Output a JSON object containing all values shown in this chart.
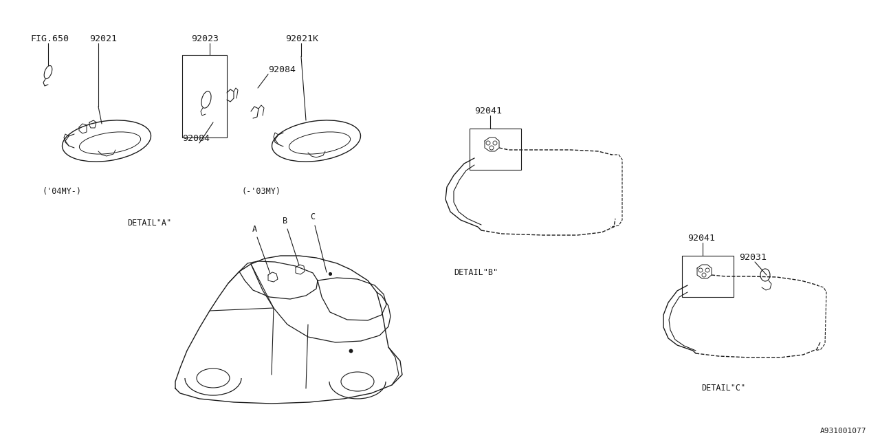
{
  "bg_color": "#ffffff",
  "line_color": "#1a1a1a",
  "fig_width": 12.8,
  "fig_height": 6.4,
  "dpi": 100,
  "part_numbers": {
    "fig650": "FIG.650",
    "p92021": "92021",
    "p92023": "92023",
    "p92021K": "92021K",
    "p92084_top": "92084",
    "p92084_bot": "92084",
    "p92041_b": "92041",
    "p92041_c": "92041",
    "p92031": "92031",
    "detail_a": "DETAIL\"A\"",
    "detail_b": "DETAIL\"B\"",
    "detail_c": "DETAIL\"C\"",
    "diagram_id": "A931001077",
    "label_04my": "('04MY-)",
    "label_03my": "(-'03MY)",
    "label_A": "A",
    "label_B": "B",
    "label_C": "C"
  },
  "font_size": 9.5,
  "font_size_small": 8.5,
  "font_size_id": 8
}
